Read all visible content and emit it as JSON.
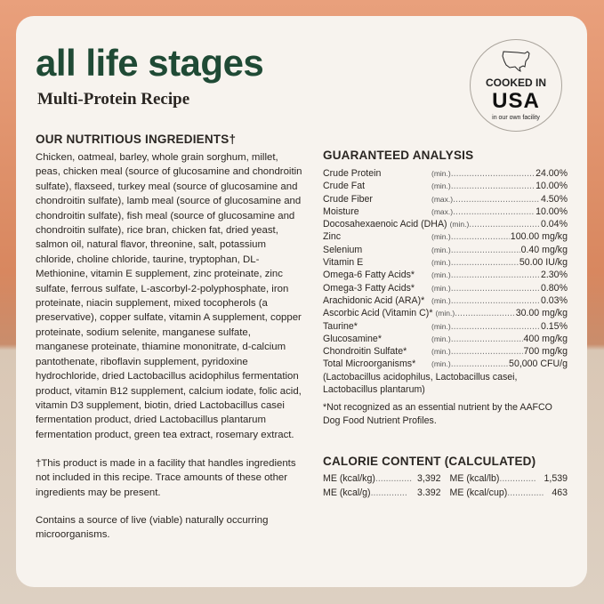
{
  "title": "all life stages",
  "subtitle": "Multi-Protein Recipe",
  "badge": {
    "top": "COOKED IN",
    "main": "USA",
    "bottom": "in our own facility",
    "icon": "usa-map-icon"
  },
  "ingredients": {
    "heading": "OUR NUTRITIOUS INGREDIENTS†",
    "text": "Chicken, oatmeal, barley, whole grain sorghum, millet, peas, chicken meal (source of glucosamine and chondroitin sulfate), flaxseed, turkey meal (source of glucosamine and chondroitin sulfate), lamb meal (source of glucosamine and chondroitin sulfate), fish meal (source of glucosamine and chondroitin sulfate), rice bran, chicken fat, dried yeast, salmon oil, natural flavor, threonine, salt, potassium chloride, choline chloride, taurine, tryptophan, DL-Methionine, vitamin E supplement, zinc proteinate, zinc sulfate, ferrous sulfate, L-ascorbyl-2-polyphosphate, iron proteinate, niacin supplement, mixed tocopherols (a preservative), copper sulfate, vitamin A supplement, copper proteinate, sodium selenite, manganese sulfate, manganese proteinate, thiamine mononitrate, d-calcium pantothenate, riboflavin supplement, pyridoxine hydrochloride, dried Lactobacillus acidophilus fermentation product, vitamin B12 supplement, calcium iodate, folic acid, vitamin D3 supplement, biotin, dried Lactobacillus casei fermentation product, dried Lactobacillus plantarum fermentation product, green tea extract, rosemary extract.",
    "facility_note": "†This product is made in a facility that handles ingredients not included in this recipe. Trace amounts of these other ingredients may be present.",
    "live_note": "Contains a source of live (viable) naturally occurring microorganisms."
  },
  "analysis": {
    "heading": "GUARANTEED ANALYSIS",
    "rows": [
      {
        "name": "Crude Protein",
        "q": "(min.)",
        "value": "24.00%"
      },
      {
        "name": "Crude Fat",
        "q": "(min.)",
        "value": "10.00%"
      },
      {
        "name": "Crude Fiber",
        "q": "(max.)",
        "value": "4.50%"
      },
      {
        "name": "Moisture",
        "q": "(max.)",
        "value": "10.00%"
      },
      {
        "name": "Docosahexaenoic Acid (DHA)",
        "q": "(min.)",
        "value": "0.04%"
      },
      {
        "name": "Zinc",
        "q": "(min.)",
        "value": "100.00 mg/kg"
      },
      {
        "name": "Selenium",
        "q": "(min.)",
        "value": "0.40 mg/kg"
      },
      {
        "name": "Vitamin E",
        "q": "(min.)",
        "value": "50.00 IU/kg"
      },
      {
        "name": "Omega-6 Fatty Acids*",
        "q": "(min.)",
        "value": "2.30%"
      },
      {
        "name": "Omega-3 Fatty Acids*",
        "q": "(min.)",
        "value": "0.80%"
      },
      {
        "name": "Arachidonic Acid (ARA)*",
        "q": "(min.)",
        "value": "0.03%"
      },
      {
        "name": "Ascorbic Acid (Vitamin C)*",
        "q": "(min.)",
        "value": "30.00 mg/kg"
      },
      {
        "name": "Taurine*",
        "q": "(min.)",
        "value": "0.15%"
      },
      {
        "name": "Glucosamine*",
        "q": "(min.)",
        "value": "400 mg/kg"
      },
      {
        "name": "Chondroitin Sulfate*",
        "q": "(min.)",
        "value": "700 mg/kg"
      },
      {
        "name": "Total Microorganisms*",
        "q": "(min.)",
        "value": "50,000 CFU/g"
      }
    ],
    "strains": "(Lactobacillus acidophilus, Lactobacillus casei, Lactobacillus plantarum)",
    "footnote": "*Not recognized as an essential nutrient by the AAFCO Dog Food Nutrient Profiles."
  },
  "calories": {
    "heading": "CALORIE CONTENT (CALCULATED)",
    "items": [
      {
        "label": "ME (kcal/kg)",
        "value": "3,392"
      },
      {
        "label": "ME (kcal/lb)",
        "value": "1,539"
      },
      {
        "label": "ME (kcal/g)",
        "value": "3.392"
      },
      {
        "label": "ME (kcal/cup)",
        "value": "463"
      }
    ]
  }
}
